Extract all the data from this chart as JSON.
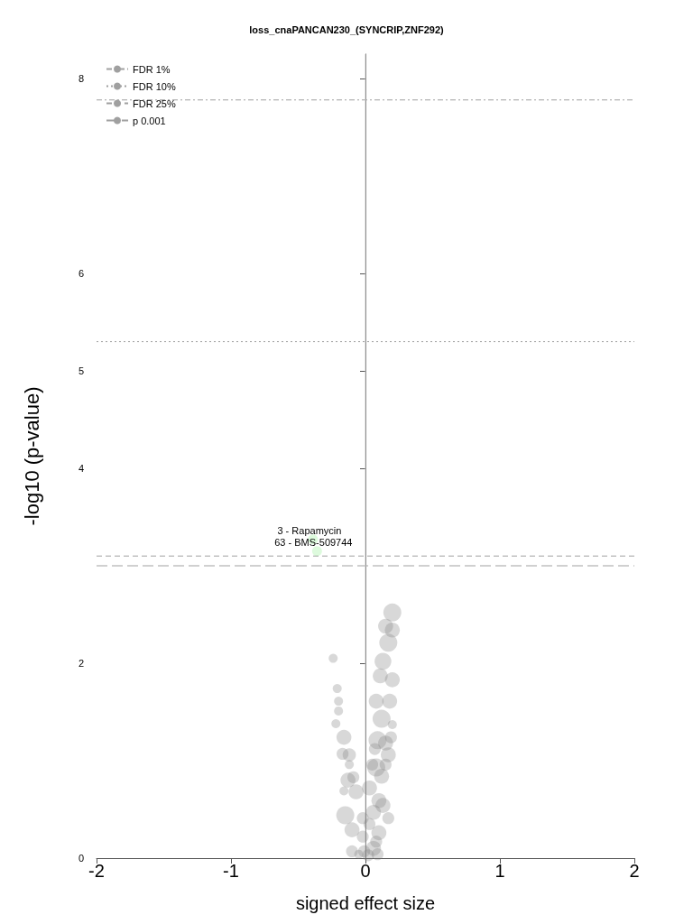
{
  "chart_data": {
    "type": "bubble",
    "title": "loss_cnaPANCAN230_(SYNCRIP,ZNF292)",
    "xlabel": "signed effect size",
    "ylabel": "-log10 (p-value)",
    "xlim": [
      -2,
      2
    ],
    "xticks": [
      -2,
      -1,
      0,
      1,
      2
    ],
    "ylim": [
      0,
      8.25
    ],
    "yticks": [
      0,
      2,
      4,
      5,
      6,
      8
    ],
    "grid": false,
    "legend": "top left",
    "marker": "circle",
    "series": [
      {
        "color": "#7f7f7f",
        "x": [
          0.2,
          0.15,
          0.2,
          0.17,
          0.13,
          0.2,
          0.11,
          -0.24,
          -0.21,
          -0.2,
          -0.2,
          -0.22,
          -0.16,
          -0.17,
          -0.12,
          0.08,
          0.18,
          0.12,
          0.2,
          0.09,
          0.15,
          0.17,
          -0.12,
          -0.13,
          -0.09,
          -0.16,
          -0.07,
          -0.15,
          -0.1,
          -0.1,
          0.08,
          0.12,
          0.03,
          0.1,
          0.06,
          0.13,
          0.03,
          0.1,
          -0.02,
          0.06,
          -0.05,
          0.02,
          0.09,
          0.17,
          -0.02,
          0.08,
          -0.01,
          0.05,
          0.15,
          0.07,
          0.19
        ],
        "values": [
          2.52,
          2.38,
          2.34,
          2.21,
          2.02,
          1.83,
          1.87,
          2.05,
          1.74,
          1.61,
          1.51,
          1.38,
          1.24,
          1.07,
          1.06,
          1.61,
          1.61,
          1.43,
          1.37,
          1.21,
          1.18,
          1.06,
          0.96,
          0.8,
          0.83,
          0.69,
          0.68,
          0.44,
          0.29,
          0.07,
          0.93,
          0.84,
          0.72,
          0.59,
          0.47,
          0.54,
          0.35,
          0.26,
          0.22,
          0.1,
          0.04,
          0.03,
          0.04,
          0.41,
          0.41,
          0.17,
          0.07,
          0.96,
          0.96,
          1.12,
          1.24
        ],
        "sizes": [
          1,
          0.69,
          0.69,
          1,
          0.87,
          0.69,
          0.69,
          0.25,
          0.25,
          0.25,
          0.25,
          0.25,
          0.69,
          0.44,
          0.54,
          0.69,
          0.69,
          1,
          0.25,
          1,
          0.69,
          0.69,
          0.25,
          0.69,
          0.44,
          0.25,
          0.69,
          1,
          0.69,
          0.44,
          1,
          0.69,
          0.69,
          0.69,
          0.69,
          0.69,
          0.44,
          0.69,
          0.44,
          0.69,
          0.25,
          0.44,
          0.44,
          0.44,
          0.44,
          0.44,
          0.44,
          0.44,
          0.44,
          0.44,
          0.44
        ]
      },
      {
        "color": "#90ee90",
        "x": [
          -0.39,
          -0.36
        ],
        "values": [
          3.27,
          3.15
        ],
        "sizes": [
          0.3,
          0.3
        ]
      }
    ],
    "ref_lines": [
      {
        "axis": "y",
        "value": 7.78,
        "label": "FDR 1%",
        "color": "#a0a0a0",
        "line_style": "dashdot"
      },
      {
        "axis": "y",
        "value": 5.3,
        "label": "FDR 10%",
        "color": "#a0a0a0",
        "line_style": "dotted"
      },
      {
        "axis": "y",
        "value": 3.1,
        "label": "FDR 25%",
        "color": "#a0a0a0",
        "line_style": "dashed"
      },
      {
        "axis": "y",
        "value": 3.0,
        "label": "p 0.001",
        "color": "#a0a0a0",
        "line_style": "longdash"
      },
      {
        "axis": "x",
        "value": 0,
        "color": "#c8c8c8",
        "line_style": "solid"
      }
    ],
    "annotations": [
      {
        "text": "3 - Rapamycin",
        "x": -0.39,
        "y": 3.27
      },
      {
        "text": "63 - BMS-509744",
        "x": -0.36,
        "y": 3.15
      }
    ]
  }
}
